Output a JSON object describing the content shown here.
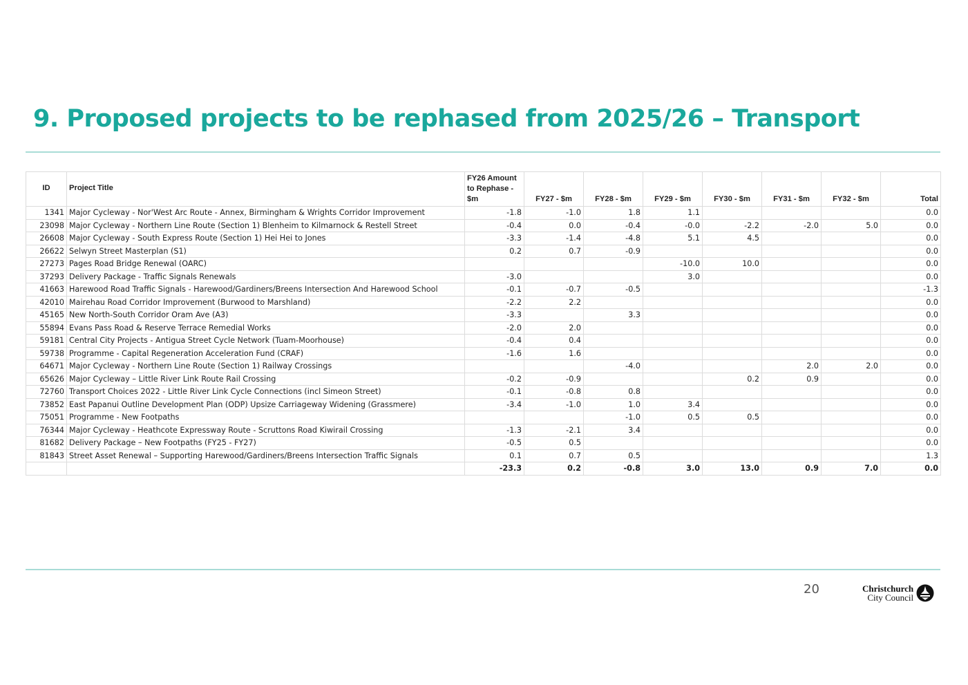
{
  "slide": {
    "title": "9. Proposed projects to be rephased from 2025/26 – Transport",
    "page_number": "20",
    "logo": {
      "line1": "Christchurch",
      "line2": "City Council"
    }
  },
  "table": {
    "headers": {
      "id": "ID",
      "title": "Project Title",
      "fy26": "FY26 Amount to Rephase - $m",
      "fy27": "FY27 - $m",
      "fy28": "FY28 - $m",
      "fy29": "FY29 - $m",
      "fy30": "FY30 - $m",
      "fy31": "FY31 - $m",
      "fy32": "FY32 - $m",
      "total": "Total"
    },
    "rows": [
      {
        "id": "1341",
        "title": "Major Cycleway - Nor'West Arc Route - Annex, Birmingham & Wrights Corridor Improvement",
        "fy26": "-1.8",
        "fy27": "-1.0",
        "fy28": "1.8",
        "fy29": "1.1",
        "fy30": "",
        "fy31": "",
        "fy32": "",
        "total": "0.0"
      },
      {
        "id": "23098",
        "title": "Major Cycleway - Northern Line Route (Section 1) Blenheim to Kilmarnock & Restell Street",
        "fy26": "-0.4",
        "fy27": "0.0",
        "fy28": "-0.4",
        "fy29": "-0.0",
        "fy30": "-2.2",
        "fy31": "-2.0",
        "fy32": "5.0",
        "total": "0.0"
      },
      {
        "id": "26608",
        "title": "Major Cycleway - South Express Route (Section 1) Hei Hei to Jones",
        "fy26": "-3.3",
        "fy27": "-1.4",
        "fy28": "-4.8",
        "fy29": "5.1",
        "fy30": "4.5",
        "fy31": "",
        "fy32": "",
        "total": "0.0"
      },
      {
        "id": "26622",
        "title": "Selwyn Street Masterplan (S1)",
        "fy26": "0.2",
        "fy27": "0.7",
        "fy28": "-0.9",
        "fy29": "",
        "fy30": "",
        "fy31": "",
        "fy32": "",
        "total": "0.0"
      },
      {
        "id": "27273",
        "title": "Pages Road Bridge Renewal (OARC)",
        "fy26": "",
        "fy27": "",
        "fy28": "",
        "fy29": "-10.0",
        "fy30": "10.0",
        "fy31": "",
        "fy32": "",
        "total": "0.0"
      },
      {
        "id": "37293",
        "title": "Delivery Package - Traffic Signals Renewals",
        "fy26": "-3.0",
        "fy27": "",
        "fy28": "",
        "fy29": "3.0",
        "fy30": "",
        "fy31": "",
        "fy32": "",
        "total": "0.0"
      },
      {
        "id": "41663",
        "title": "Harewood Road Traffic Signals - Harewood/Gardiners/Breens Intersection And Harewood School",
        "fy26": "-0.1",
        "fy27": "-0.7",
        "fy28": "-0.5",
        "fy29": "",
        "fy30": "",
        "fy31": "",
        "fy32": "",
        "total": "-1.3"
      },
      {
        "id": "42010",
        "title": "Mairehau Road Corridor Improvement (Burwood to Marshland)",
        "fy26": "-2.2",
        "fy27": "2.2",
        "fy28": "",
        "fy29": "",
        "fy30": "",
        "fy31": "",
        "fy32": "",
        "total": "0.0"
      },
      {
        "id": "45165",
        "title": "New North-South Corridor Oram Ave (A3)",
        "fy26": "-3.3",
        "fy27": "",
        "fy28": "3.3",
        "fy29": "",
        "fy30": "",
        "fy31": "",
        "fy32": "",
        "total": "0.0"
      },
      {
        "id": "55894",
        "title": "Evans Pass Road & Reserve Terrace Remedial Works",
        "fy26": "-2.0",
        "fy27": "2.0",
        "fy28": "",
        "fy29": "",
        "fy30": "",
        "fy31": "",
        "fy32": "",
        "total": "0.0"
      },
      {
        "id": "59181",
        "title": "Central City Projects - Antigua Street Cycle Network (Tuam-Moorhouse)",
        "fy26": "-0.4",
        "fy27": "0.4",
        "fy28": "",
        "fy29": "",
        "fy30": "",
        "fy31": "",
        "fy32": "",
        "total": "0.0"
      },
      {
        "id": "59738",
        "title": "Programme - Capital Regeneration Acceleration Fund (CRAF)",
        "fy26": "-1.6",
        "fy27": "1.6",
        "fy28": "",
        "fy29": "",
        "fy30": "",
        "fy31": "",
        "fy32": "",
        "total": "0.0"
      },
      {
        "id": "64671",
        "title": "Major Cycleway - Northern Line Route (Section 1) Railway Crossings",
        "fy26": "",
        "fy27": "",
        "fy28": "-4.0",
        "fy29": "",
        "fy30": "",
        "fy31": "2.0",
        "fy32": "2.0",
        "total": "0.0"
      },
      {
        "id": "65626",
        "title": "Major Cycleway – Little River Link Route Rail Crossing",
        "fy26": "-0.2",
        "fy27": "-0.9",
        "fy28": "",
        "fy29": "",
        "fy30": "0.2",
        "fy31": "0.9",
        "fy32": "",
        "total": "0.0"
      },
      {
        "id": "72760",
        "title": "Transport Choices 2022 - Little River Link Cycle Connections (incl Simeon Street)",
        "fy26": "-0.1",
        "fy27": "-0.8",
        "fy28": "0.8",
        "fy29": "",
        "fy30": "",
        "fy31": "",
        "fy32": "",
        "total": "0.0"
      },
      {
        "id": "73852",
        "title": "East Papanui Outline Development Plan (ODP) Upsize Carriageway Widening (Grassmere)",
        "fy26": "-3.4",
        "fy27": "-1.0",
        "fy28": "1.0",
        "fy29": "3.4",
        "fy30": "",
        "fy31": "",
        "fy32": "",
        "total": "0.0"
      },
      {
        "id": "75051",
        "title": "Programme - New Footpaths",
        "fy26": "",
        "fy27": "",
        "fy28": "-1.0",
        "fy29": "0.5",
        "fy30": "0.5",
        "fy31": "",
        "fy32": "",
        "total": "0.0"
      },
      {
        "id": "76344",
        "title": "Major Cycleway - Heathcote Expressway Route - Scruttons Road Kiwirail Crossing",
        "fy26": "-1.3",
        "fy27": "-2.1",
        "fy28": "3.4",
        "fy29": "",
        "fy30": "",
        "fy31": "",
        "fy32": "",
        "total": "0.0"
      },
      {
        "id": "81682",
        "title": "Delivery Package – New Footpaths (FY25 - FY27)",
        "fy26": "-0.5",
        "fy27": "0.5",
        "fy28": "",
        "fy29": "",
        "fy30": "",
        "fy31": "",
        "fy32": "",
        "total": "0.0"
      },
      {
        "id": "81843",
        "title": "Street Asset Renewal – Supporting Harewood/Gardiners/Breens Intersection Traffic Signals",
        "fy26": "0.1",
        "fy27": "0.7",
        "fy28": "0.5",
        "fy29": "",
        "fy30": "",
        "fy31": "",
        "fy32": "",
        "total": "1.3"
      }
    ],
    "totals": {
      "fy26": "-23.3",
      "fy27": "0.2",
      "fy28": "-0.8",
      "fy29": "3.0",
      "fy30": "13.0",
      "fy31": "0.9",
      "fy32": "7.0",
      "total": "0.0"
    }
  },
  "colors": {
    "accent": "#1aa89c",
    "rule": "#a8dcd6"
  }
}
